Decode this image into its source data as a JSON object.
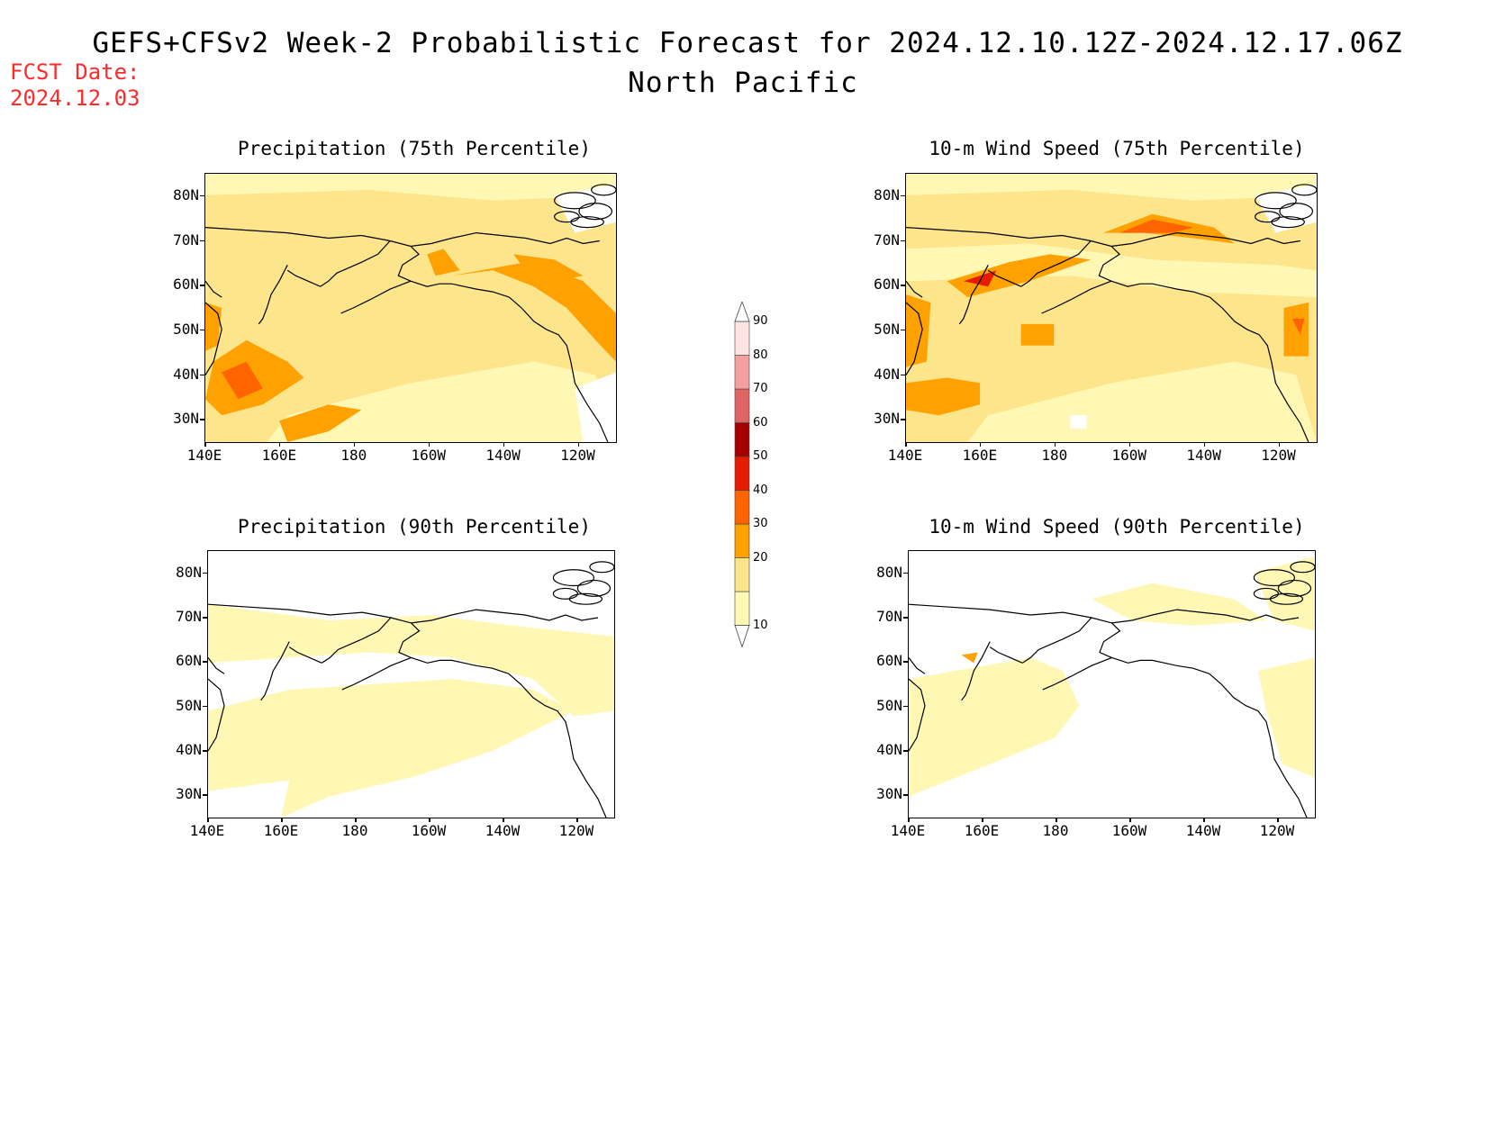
{
  "header": {
    "title": "GEFS+CFSv2 Week-2 Probabilistic Forecast for 2024.12.10.12Z-2024.12.17.06Z",
    "region": "North Pacific",
    "fcst_label": "FCST Date:",
    "fcst_date": "2024.12.03"
  },
  "axes": {
    "y_ticks": [
      "80N",
      "70N",
      "60N",
      "50N",
      "40N",
      "30N"
    ],
    "x_ticks": [
      "140E",
      "160E",
      "180",
      "160W",
      "140W",
      "120W"
    ]
  },
  "panels": [
    {
      "id": "precip75",
      "title": "Precipitation (75th Percentile)",
      "level": "high"
    },
    {
      "id": "wind75",
      "title": "10-m Wind Speed (75th Percentile)",
      "level": "high"
    },
    {
      "id": "precip90",
      "title": "Precipitation (90th Percentile)",
      "level": "low"
    },
    {
      "id": "wind90",
      "title": "10-m Wind Speed (90th Percentile)",
      "level": "low"
    }
  ],
  "colorbar": {
    "levels": [
      "10",
      "20",
      "30",
      "40",
      "50",
      "60",
      "70",
      "80",
      "90"
    ],
    "colors": [
      "#fff8b4",
      "#fde58c",
      "#ffa100",
      "#ff6400",
      "#e51c00",
      "#a40000",
      "#e06464",
      "#f5a0a0",
      "#ffe4e4"
    ]
  }
}
